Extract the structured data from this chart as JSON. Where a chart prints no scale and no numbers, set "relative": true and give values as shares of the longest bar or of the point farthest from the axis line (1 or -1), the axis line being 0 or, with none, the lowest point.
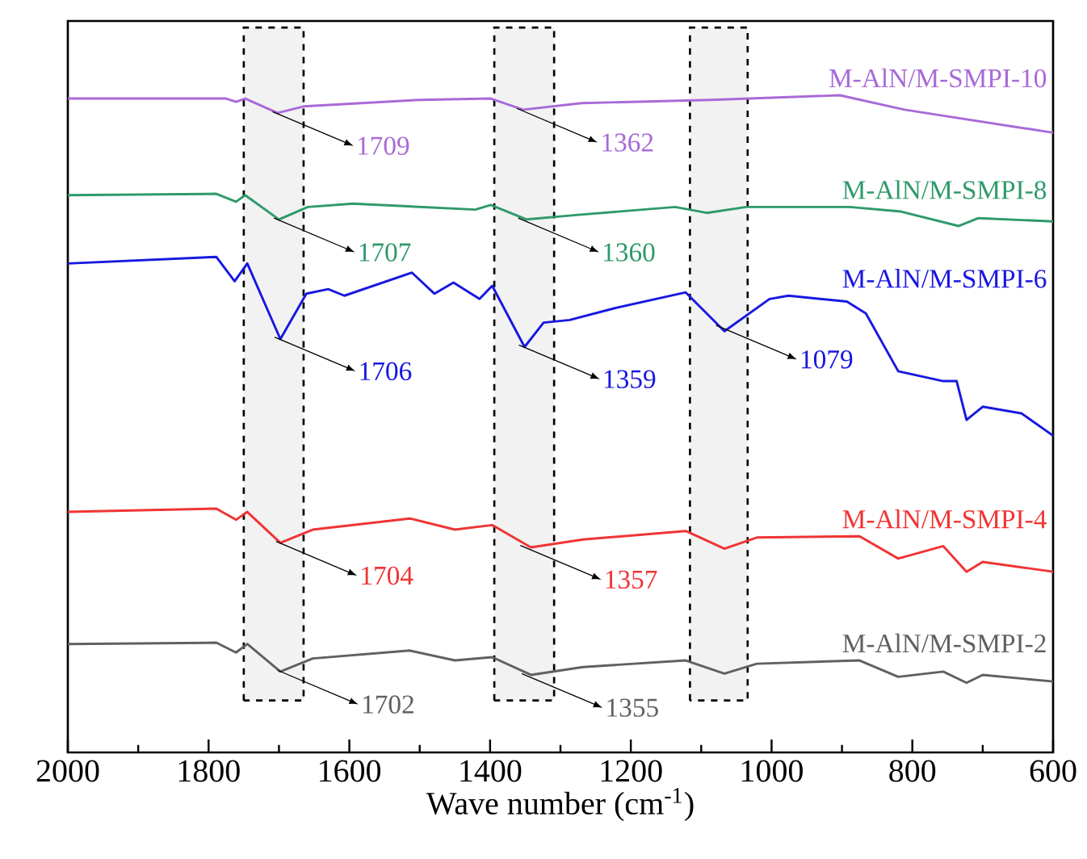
{
  "chart_data": {
    "type": "line",
    "relative": true,
    "xlabel": "Wave number (cm$^{-1}$)",
    "xlim": [
      2000,
      600
    ],
    "xticks": [
      2000,
      1800,
      1600,
      1400,
      1200,
      1000,
      800,
      600
    ],
    "tick_labels": "x",
    "grid": false,
    "marker": "none",
    "line_style": "solid",
    "series": [
      {
        "name": "M-AlN/M-SMPI-10",
        "color": "#a86ad8",
        "x": [
          2000,
          1775,
          1761,
          1748,
          1702,
          1665,
          1500,
          1399,
          1353,
          1270,
          1087,
          1031,
          903,
          811,
          600
        ],
        "values": [
          0.995,
          0.995,
          0.99,
          0.995,
          0.973,
          0.983,
          0.993,
          0.995,
          0.978,
          0.988,
          0.993,
          0.995,
          1.0,
          0.978,
          0.943
        ]
      },
      {
        "name": "M-AlN/M-SMPI-8",
        "color": "#2e9a6a",
        "x": [
          2000,
          1789,
          1761,
          1748,
          1700,
          1659,
          1595,
          1421,
          1399,
          1348,
          1275,
          1137,
          1092,
          1036,
          889,
          816,
          734,
          706,
          600
        ],
        "values": [
          0.848,
          0.85,
          0.838,
          0.848,
          0.811,
          0.83,
          0.835,
          0.826,
          0.833,
          0.811,
          0.818,
          0.83,
          0.821,
          0.83,
          0.83,
          0.823,
          0.801,
          0.813,
          0.808
        ]
      },
      {
        "name": "M-AlN/M-SMPI-6",
        "color": "#1818e0",
        "x": [
          2000,
          1789,
          1763,
          1745,
          1698,
          1661,
          1630,
          1607,
          1511,
          1479,
          1452,
          1415,
          1397,
          1351,
          1324,
          1287,
          1223,
          1122,
          1067,
          1003,
          976,
          893,
          866,
          820,
          756,
          737,
          723,
          700,
          645,
          600
        ],
        "values": [
          0.744,
          0.754,
          0.717,
          0.744,
          0.629,
          0.698,
          0.705,
          0.695,
          0.73,
          0.698,
          0.715,
          0.69,
          0.71,
          0.617,
          0.654,
          0.658,
          0.676,
          0.7,
          0.641,
          0.69,
          0.695,
          0.686,
          0.668,
          0.58,
          0.565,
          0.565,
          0.506,
          0.526,
          0.516,
          0.482
        ]
      },
      {
        "name": "M-AlN/M-SMPI-4",
        "color": "#f03434",
        "x": [
          2000,
          1789,
          1761,
          1745,
          1698,
          1652,
          1514,
          1450,
          1397,
          1342,
          1268,
          1122,
          1067,
          1021,
          875,
          820,
          756,
          723,
          700,
          600
        ],
        "values": [
          0.366,
          0.371,
          0.354,
          0.366,
          0.319,
          0.339,
          0.356,
          0.339,
          0.346,
          0.312,
          0.324,
          0.337,
          0.31,
          0.327,
          0.329,
          0.295,
          0.314,
          0.275,
          0.29,
          0.275
        ]
      },
      {
        "name": "M-AlN/M-SMPI-2",
        "color": "#606060",
        "x": [
          2000,
          1789,
          1761,
          1745,
          1698,
          1652,
          1514,
          1450,
          1397,
          1342,
          1268,
          1122,
          1067,
          1021,
          875,
          820,
          756,
          723,
          700,
          600
        ],
        "values": [
          0.165,
          0.167,
          0.152,
          0.165,
          0.123,
          0.143,
          0.155,
          0.14,
          0.145,
          0.118,
          0.13,
          0.14,
          0.12,
          0.135,
          0.14,
          0.115,
          0.123,
          0.106,
          0.118,
          0.108
        ]
      }
    ],
    "bands": [
      {
        "axis": "x",
        "from": 1750,
        "to": 1665
      },
      {
        "axis": "x",
        "from": 1394,
        "to": 1309
      },
      {
        "axis": "x",
        "from": 1116,
        "to": 1034
      }
    ],
    "annotations": [
      {
        "text": "1709",
        "x": 1709,
        "y": 0.975
      },
      {
        "text": "1362",
        "x": 1362,
        "y": 0.98
      },
      {
        "text": "1707",
        "x": 1707,
        "y": 0.813
      },
      {
        "text": "1360",
        "x": 1360,
        "y": 0.813
      },
      {
        "text": "1706",
        "x": 1706,
        "y": 0.632
      },
      {
        "text": "1359",
        "x": 1359,
        "y": 0.62
      },
      {
        "text": "1079",
        "x": 1079,
        "y": 0.65
      },
      {
        "text": "1704",
        "x": 1704,
        "y": 0.321
      },
      {
        "text": "1357",
        "x": 1357,
        "y": 0.315
      },
      {
        "text": "1702",
        "x": 1702,
        "y": 0.125
      },
      {
        "text": "1355",
        "x": 1355,
        "y": 0.12
      }
    ]
  }
}
